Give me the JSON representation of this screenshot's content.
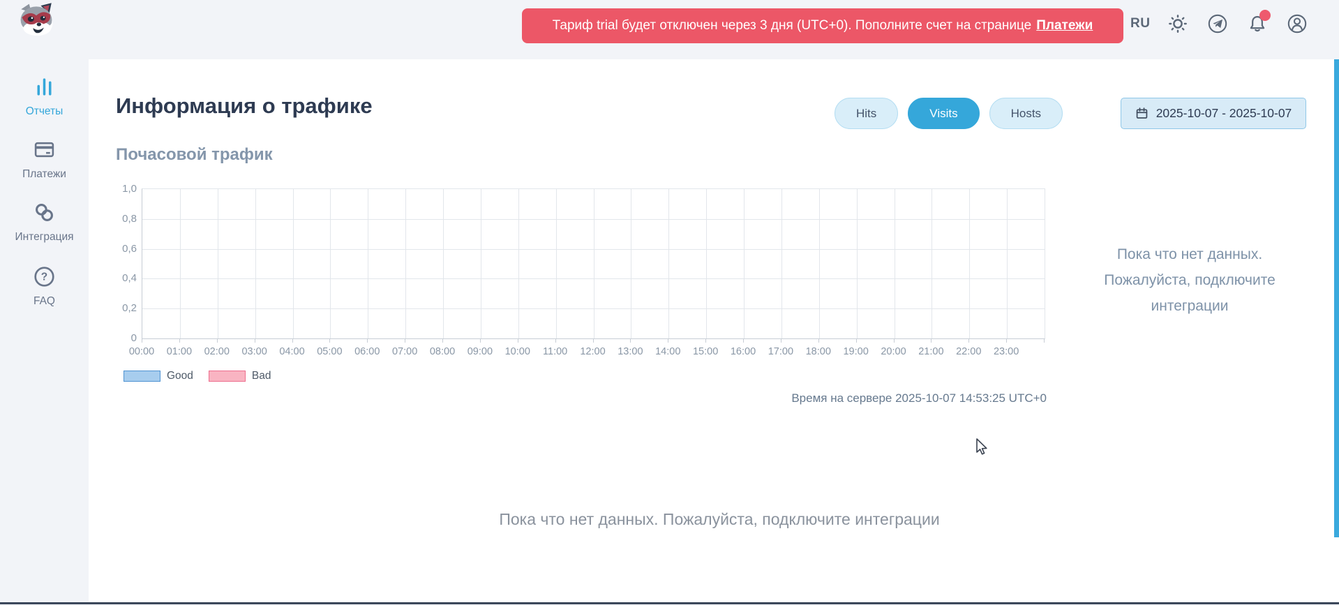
{
  "header": {
    "banner": {
      "text": "Тариф trial будет отключен через 3 дня (UTC+0). Пополните счет на странице",
      "link_label": "Платежи"
    },
    "language": "RU",
    "icons": [
      "sun-icon",
      "telegram-icon",
      "bell-icon",
      "profile-icon"
    ],
    "notification_dot_color": "#ee5a6e",
    "banner_color": "#ec5767"
  },
  "sidebar": {
    "items": [
      {
        "label": "Отчеты",
        "icon": "bar-chart-icon",
        "active": true
      },
      {
        "label": "Платежи",
        "icon": "credit-card-icon",
        "active": false
      },
      {
        "label": "Интеграция",
        "icon": "integration-icon",
        "active": false
      },
      {
        "label": "FAQ",
        "icon": "faq-icon",
        "active": false
      }
    ],
    "active_color": "#35a7da"
  },
  "main": {
    "title": "Информация о трафике",
    "metric_tabs": [
      {
        "label": "Hits",
        "active": false
      },
      {
        "label": "Visits",
        "active": true
      },
      {
        "label": "Hosts",
        "active": false
      }
    ],
    "date_range": "2025-10-07 - 2025-10-07",
    "section_title": "Почасовой трафик",
    "empty_side_text": "Пока что нет данных. Пожалуйста, подключите интеграции",
    "server_time": "Время на сервере 2025-10-07 14:53:25 UTC+0",
    "empty_bottom_text": "Пока что нет данных. Пожалуйста, подключите интеграции"
  },
  "chart_data": {
    "type": "line",
    "title": "Почасовой трафик",
    "x": [
      "00:00",
      "01:00",
      "02:00",
      "03:00",
      "04:00",
      "05:00",
      "06:00",
      "07:00",
      "08:00",
      "09:00",
      "10:00",
      "11:00",
      "12:00",
      "13:00",
      "14:00",
      "15:00",
      "16:00",
      "17:00",
      "18:00",
      "19:00",
      "20:00",
      "21:00",
      "22:00",
      "23:00"
    ],
    "series": [
      {
        "name": "Good",
        "values": [],
        "fill": "#a7cdee",
        "border": "#4f93d2"
      },
      {
        "name": "Bad",
        "values": [],
        "fill": "#f9b4c2",
        "border": "#ee6f8e"
      }
    ],
    "ylim": [
      0,
      1
    ],
    "yticks": [
      "1,0",
      "0,8",
      "0,6",
      "0,4",
      "0,2",
      "0"
    ],
    "grid": true,
    "legend_position": "bottom-left",
    "empty": true,
    "empty_message": "Пока что нет данных. Пожалуйста, подключите интеграции"
  }
}
